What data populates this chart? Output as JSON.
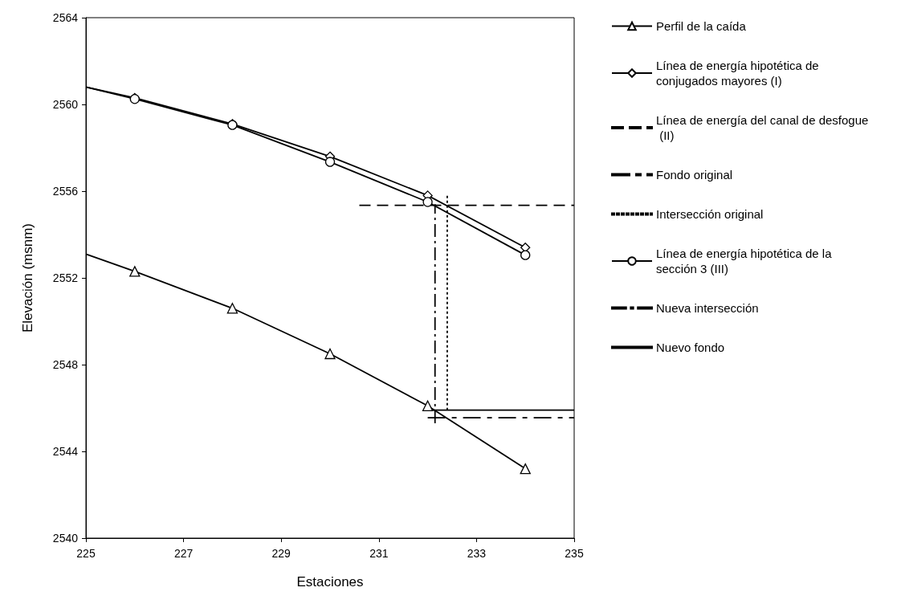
{
  "chart_data": {
    "type": "line",
    "xlabel": "Estaciones",
    "ylabel": "Elevación (msnm)",
    "xlim": [
      225,
      235
    ],
    "xticks": [
      225,
      227,
      229,
      231,
      233,
      235
    ],
    "ylim": [
      2540,
      2564
    ],
    "yticks": [
      2540,
      2544,
      2548,
      2552,
      2556,
      2560,
      2564
    ],
    "grid": false,
    "legend": "right",
    "series": [
      {
        "name": "Perfil de la caída",
        "color": "#000000",
        "marker": "triangle",
        "line_style": "solid",
        "x": [
          225,
          226,
          228,
          230,
          232,
          234
        ],
        "values": [
          2553.1,
          2552.3,
          2550.6,
          2548.5,
          2546.1,
          2543.2
        ]
      },
      {
        "name": "Línea de energía hipotética de conjugados mayores (I)",
        "color": "#000000",
        "marker": "diamond",
        "line_style": "solid",
        "x": [
          225,
          226,
          228,
          230,
          232,
          234
        ],
        "values": [
          2560.8,
          2560.3,
          2559.1,
          2557.6,
          2555.8,
          2553.4
        ]
      },
      {
        "name": "Línea de energía del canal de desfogue (II)",
        "color": "#000000",
        "marker": "none",
        "line_style": "dashed",
        "x": [
          230.6,
          235
        ],
        "values": [
          2555.35,
          2555.35
        ]
      },
      {
        "name": "Fondo original",
        "color": "#000000",
        "marker": "none",
        "line_style": "longdash",
        "x": [
          232,
          235
        ],
        "values": [
          2545.55,
          2545.55
        ]
      },
      {
        "name": "Intersección original",
        "color": "#000000",
        "marker": "none",
        "line_style": "dotted",
        "x": [
          232.4,
          232.4
        ],
        "values": [
          2545.9,
          2555.9
        ]
      },
      {
        "name": "Línea de energía hipotética de la sección 3 (III)",
        "color": "#000000",
        "marker": "circle",
        "line_style": "solid",
        "x": [
          225,
          226,
          228,
          230,
          232,
          234
        ],
        "values": [
          2560.8,
          2560.25,
          2559.05,
          2557.35,
          2555.5,
          2553.05
        ]
      },
      {
        "name": "Nueva intersección",
        "color": "#000000",
        "marker": "none",
        "line_style": "dashdot",
        "x": [
          232.15,
          232.15
        ],
        "values": [
          2545.3,
          2555.4
        ]
      },
      {
        "name": "Nuevo fondo",
        "color": "#000000",
        "marker": "none",
        "line_style": "solid",
        "x": [
          232.1,
          235
        ],
        "values": [
          2545.9,
          2545.9
        ]
      }
    ]
  }
}
